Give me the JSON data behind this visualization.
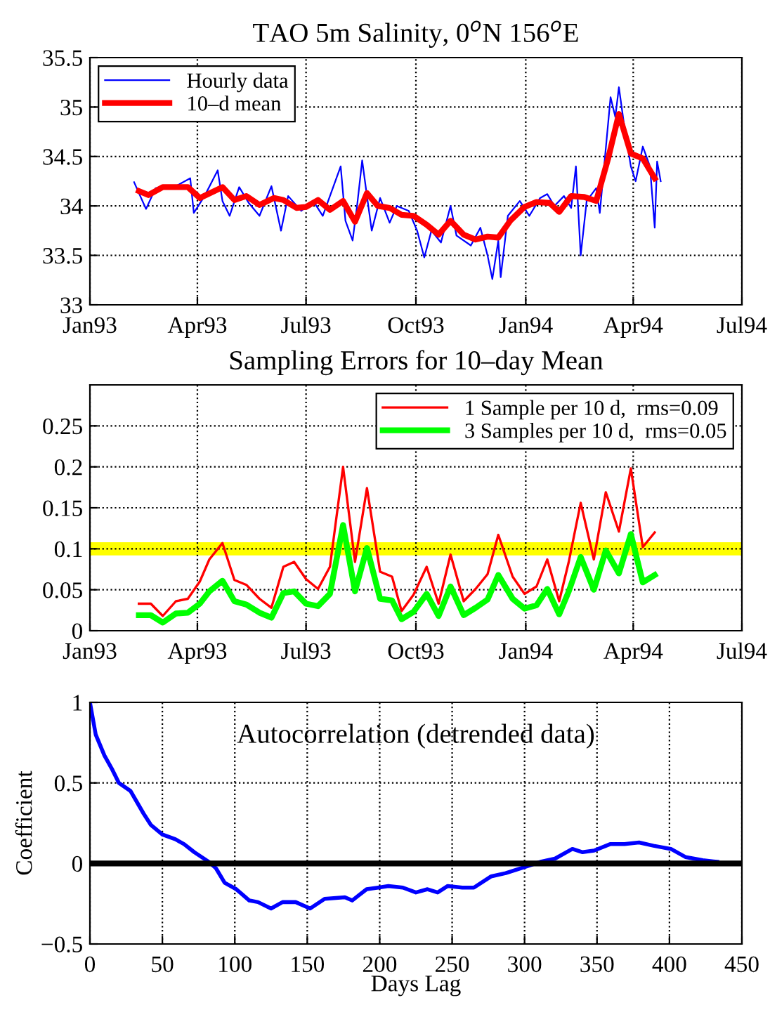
{
  "chart_data": [
    {
      "type": "line",
      "title": "TAO 5m Salinity, 0$^{o}$N 156$^{o}$E",
      "xlim": [
        "1993-01-01",
        "1994-07-01"
      ],
      "ylim": [
        33,
        35.5
      ],
      "xticks": [
        {
          "value": "1993-01-01",
          "label": "Jan93"
        },
        {
          "value": "1993-04-01",
          "label": "Apr93"
        },
        {
          "value": "1993-07-01",
          "label": "Jul93"
        },
        {
          "value": "1993-10-01",
          "label": "Oct93"
        },
        {
          "value": "1994-01-01",
          "label": "Jan94"
        },
        {
          "value": "1994-04-01",
          "label": "Apr94"
        },
        {
          "value": "1994-07-01",
          "label": "Jul94"
        }
      ],
      "yticks": [
        33,
        33.5,
        34,
        34.5,
        35,
        35.5
      ],
      "grid": true,
      "legend": "top left",
      "marker": "none",
      "line_style": "solid",
      "series": [
        {
          "name": "Hourly data",
          "color": "#0000ff",
          "x": [
            "1993-02-07",
            "1993-02-11",
            "1993-02-17",
            "1993-02-25",
            "1993-03-14",
            "1993-03-26",
            "1993-03-29",
            "1993-04-07",
            "1993-04-18",
            "1993-04-22",
            "1993-04-28",
            "1993-05-06",
            "1993-05-14",
            "1993-05-23",
            "1993-06-02",
            "1993-06-10",
            "1993-06-16",
            "1993-06-27",
            "1993-07-07",
            "1993-07-15",
            "1993-07-30",
            "1993-08-03",
            "1993-08-09",
            "1993-08-13",
            "1993-08-17",
            "1993-08-21",
            "1993-08-25",
            "1993-09-01",
            "1993-09-09",
            "1993-09-15",
            "1993-09-25",
            "1993-10-02",
            "1993-10-08",
            "1993-10-14",
            "1993-10-22",
            "1993-10-30",
            "1993-11-04",
            "1993-11-16",
            "1993-11-24",
            "1993-11-30",
            "1993-12-04",
            "1993-12-09",
            "1993-12-11",
            "1993-12-17",
            "1993-12-27",
            "1994-01-04",
            "1994-01-13",
            "1994-01-19",
            "1994-01-25",
            "1994-02-02",
            "1994-02-08",
            "1994-02-12",
            "1994-02-16",
            "1994-02-21",
            "1994-03-01",
            "1994-03-04",
            "1994-03-13",
            "1994-03-17",
            "1994-03-20",
            "1994-03-24",
            "1994-03-30",
            "1994-04-03",
            "1994-04-09",
            "1994-04-15",
            "1994-04-19",
            "1994-04-21",
            "1994-04-24"
          ],
          "values": [
            34.24,
            34.13,
            33.97,
            34.18,
            34.2,
            34.28,
            33.93,
            34.1,
            34.36,
            34.05,
            33.9,
            34.19,
            34.03,
            33.9,
            34.2,
            33.75,
            34.1,
            33.95,
            34.05,
            33.9,
            34.4,
            33.85,
            33.65,
            34.03,
            34.46,
            34.1,
            33.75,
            34.08,
            33.83,
            34.0,
            33.95,
            33.75,
            33.48,
            33.75,
            33.63,
            34.0,
            33.7,
            33.6,
            33.78,
            33.5,
            33.26,
            33.65,
            33.28,
            33.9,
            34.05,
            33.9,
            34.08,
            34.12,
            34.0,
            34.1,
            33.98,
            34.4,
            33.5,
            34.05,
            34.18,
            33.93,
            35.1,
            34.9,
            35.2,
            34.85,
            34.4,
            34.25,
            34.6,
            34.4,
            33.78,
            34.45,
            34.25
          ]
        },
        {
          "name": "10–d mean",
          "color": "#ff0000",
          "x": [
            "1993-02-11",
            "1993-02-19",
            "1993-03-03",
            "1993-03-24",
            "1993-04-03",
            "1993-04-22",
            "1993-05-02",
            "1993-05-12",
            "1993-05-23",
            "1993-06-04",
            "1993-06-12",
            "1993-06-23",
            "1993-07-01",
            "1993-07-11",
            "1993-07-21",
            "1993-08-01",
            "1993-08-11",
            "1993-08-21",
            "1993-08-30",
            "1993-09-09",
            "1993-09-19",
            "1993-09-29",
            "1993-10-10",
            "1993-10-20",
            "1993-10-30",
            "1993-11-10",
            "1993-11-20",
            "1993-11-30",
            "1993-12-09",
            "1993-12-19",
            "1993-12-31",
            "1994-01-10",
            "1994-01-21",
            "1994-01-29",
            "1994-02-08",
            "1994-02-19",
            "1994-03-01",
            "1994-03-11",
            "1994-03-20",
            "1994-03-30",
            "1994-04-09",
            "1994-04-19"
          ],
          "values": [
            34.15,
            34.11,
            34.19,
            34.19,
            34.08,
            34.19,
            34.06,
            34.1,
            34.01,
            34.08,
            34.06,
            33.98,
            33.99,
            34.06,
            33.96,
            34.05,
            33.84,
            34.13,
            34.0,
            33.98,
            33.91,
            33.9,
            33.81,
            33.71,
            33.85,
            33.71,
            33.66,
            33.69,
            33.68,
            33.85,
            33.99,
            34.04,
            34.03,
            33.94,
            34.1,
            34.09,
            34.05,
            34.48,
            34.93,
            34.53,
            34.48,
            34.28
          ]
        }
      ]
    },
    {
      "type": "line",
      "title": "Sampling Errors for 10–day Mean",
      "xlim": [
        "1993-01-01",
        "1994-07-01"
      ],
      "ylim": [
        0,
        0.3
      ],
      "xticks": [
        {
          "value": "1993-01-01",
          "label": "Jan93"
        },
        {
          "value": "1993-04-01",
          "label": "Apr93"
        },
        {
          "value": "1993-07-01",
          "label": "Jul93"
        },
        {
          "value": "1993-10-01",
          "label": "Oct93"
        },
        {
          "value": "1994-01-01",
          "label": "Jan94"
        },
        {
          "value": "1994-04-01",
          "label": "Apr94"
        },
        {
          "value": "1994-07-01",
          "label": "Jul94"
        }
      ],
      "yticks": [
        0,
        0.05,
        0.1,
        0.15,
        0.2,
        0.25
      ],
      "grid": true,
      "legend": "top right",
      "marker": "none",
      "line_style": "solid",
      "bands": [
        {
          "axis": "y",
          "from": 0.092,
          "to": 0.108,
          "color": "#ffff00"
        }
      ],
      "x": [
        "1993-02-11",
        "1993-02-21",
        "1993-03-03",
        "1993-03-14",
        "1993-03-24",
        "1993-04-03",
        "1993-04-11",
        "1993-04-22",
        "1993-05-02",
        "1993-05-12",
        "1993-05-23",
        "1993-06-02",
        "1993-06-12",
        "1993-06-21",
        "1993-07-01",
        "1993-07-11",
        "1993-07-21",
        "1993-08-01",
        "1993-08-11",
        "1993-08-21",
        "1993-09-01",
        "1993-09-11",
        "1993-09-19",
        "1993-09-29",
        "1993-10-10",
        "1993-10-20",
        "1993-10-30",
        "1993-11-10",
        "1993-11-20",
        "1993-11-30",
        "1993-12-09",
        "1993-12-21",
        "1993-12-31",
        "1994-01-10",
        "1994-01-19",
        "1994-01-29",
        "1994-02-06",
        "1994-02-16",
        "1994-02-27",
        "1994-03-09",
        "1994-03-20",
        "1994-03-30",
        "1994-04-09",
        "1994-04-19"
      ],
      "series": [
        {
          "name": "1 Sample per 10 d,  rms=0.09",
          "color": "#ff0000",
          "values": [
            0.033,
            0.033,
            0.018,
            0.036,
            0.039,
            0.06,
            0.087,
            0.107,
            0.062,
            0.056,
            0.039,
            0.028,
            0.078,
            0.084,
            0.063,
            0.051,
            0.078,
            0.2,
            0.084,
            0.174,
            0.072,
            0.066,
            0.024,
            0.044,
            0.078,
            0.033,
            0.093,
            0.036,
            0.051,
            0.069,
            0.117,
            0.066,
            0.045,
            0.054,
            0.087,
            0.036,
            0.084,
            0.156,
            0.087,
            0.169,
            0.121,
            0.198,
            0.102,
            0.12
          ]
        },
        {
          "name": "3 Samples per 10 d,  rms=0.05",
          "color": "#00ff00",
          "values": [
            0.019,
            0.019,
            0.01,
            0.021,
            0.022,
            0.033,
            0.048,
            0.061,
            0.036,
            0.032,
            0.022,
            0.016,
            0.046,
            0.048,
            0.033,
            0.03,
            0.045,
            0.129,
            0.048,
            0.101,
            0.039,
            0.037,
            0.014,
            0.023,
            0.045,
            0.018,
            0.054,
            0.019,
            0.028,
            0.038,
            0.068,
            0.039,
            0.027,
            0.031,
            0.051,
            0.02,
            0.048,
            0.09,
            0.05,
            0.098,
            0.07,
            0.118,
            0.059,
            0.068
          ]
        }
      ]
    },
    {
      "type": "line",
      "xlabel": "Days Lag",
      "ylabel": "Coefficient",
      "annotations": [
        "Autocorrelation (detrended data)"
      ],
      "xlim": [
        0,
        450
      ],
      "ylim": [
        -0.5,
        1
      ],
      "xticks": [
        0,
        50,
        100,
        150,
        200,
        250,
        300,
        350,
        400,
        450
      ],
      "yticks": [
        {
          "value": -0.5,
          "label": "−0.5"
        },
        0,
        0.5,
        1
      ],
      "grid": true,
      "marker": "none",
      "line_style": "solid",
      "ref_lines": [
        {
          "axis": "y",
          "value": 0,
          "color": "#000000"
        }
      ],
      "series": [
        {
          "color": "#0000ff",
          "x": [
            0,
            4,
            10,
            15,
            20,
            28,
            37,
            42,
            50,
            59,
            65,
            72,
            82,
            87,
            93,
            101,
            110,
            116,
            125,
            133,
            142,
            152,
            162,
            176,
            181,
            191,
            199,
            206,
            216,
            225,
            233,
            240,
            247,
            257,
            265,
            277,
            287,
            301,
            311,
            321,
            333,
            340,
            348,
            359,
            369,
            379,
            389,
            401,
            411,
            423,
            433
          ],
          "values": [
            1,
            0.8,
            0.67,
            0.59,
            0.5,
            0.45,
            0.31,
            0.24,
            0.18,
            0.15,
            0.12,
            0.07,
            0.01,
            -0.03,
            -0.12,
            -0.16,
            -0.23,
            -0.24,
            -0.28,
            -0.24,
            -0.24,
            -0.28,
            -0.22,
            -0.21,
            -0.23,
            -0.16,
            -0.15,
            -0.14,
            -0.15,
            -0.18,
            -0.16,
            -0.18,
            -0.14,
            -0.15,
            -0.15,
            -0.08,
            -0.06,
            -0.02,
            0.01,
            0.03,
            0.09,
            0.07,
            0.08,
            0.12,
            0.12,
            0.13,
            0.11,
            0.09,
            0.04,
            0.02,
            0.01
          ]
        }
      ]
    }
  ]
}
